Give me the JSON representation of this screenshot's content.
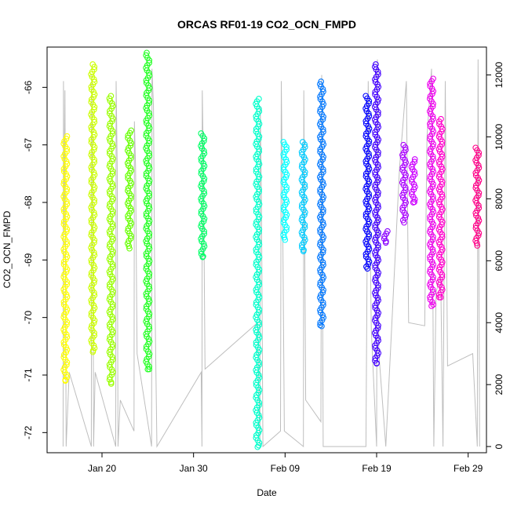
{
  "chart_data": {
    "type": "scatter",
    "title": "ORCAS RF01-19 CO2_OCN_FMPD",
    "xlabel": "Date",
    "ylabel": "CO2_OCN_FMPD",
    "xlim": [
      "2016-01-14",
      "2016-03-02"
    ],
    "ylim": [
      -72.35,
      -65.3
    ],
    "y2lim": [
      -200,
      12900
    ],
    "grid": false,
    "legend": "none",
    "x_ticks": [
      {
        "date": "2016-01-20",
        "label": "Jan 20"
      },
      {
        "date": "2016-01-30",
        "label": "Jan 30"
      },
      {
        "date": "2016-02-09",
        "label": "Feb 09"
      },
      {
        "date": "2016-02-19",
        "label": "Feb 19"
      },
      {
        "date": "2016-02-29",
        "label": "Feb 29"
      }
    ],
    "y_ticks": [
      -66,
      -67,
      -68,
      -69,
      -70,
      -71,
      -72
    ],
    "y2_ticks": [
      0,
      2000,
      4000,
      6000,
      8000,
      10000,
      12000
    ],
    "flights": [
      {
        "x": "2016-01-16",
        "ymin": -71.1,
        "ymax": -66.85,
        "color": "#FFFF00"
      },
      {
        "x": "2016-01-19",
        "ymin": -70.6,
        "ymax": -65.6,
        "color": "#CCFF00"
      },
      {
        "x": "2016-01-21",
        "ymin": -71.15,
        "ymax": -66.15,
        "color": "#99FF00"
      },
      {
        "x": "2016-01-23",
        "ymin": -68.8,
        "ymax": -66.75,
        "color": "#66FF00"
      },
      {
        "x": "2016-01-25",
        "ymin": -70.9,
        "ymax": -65.4,
        "color": "#22FF22"
      },
      {
        "x": "2016-01-31",
        "ymin": -68.95,
        "ymax": -66.8,
        "color": "#00FF66"
      },
      {
        "x": "2016-02-06",
        "ymin": -72.25,
        "ymax": -66.2,
        "color": "#00FFCC"
      },
      {
        "x": "2016-02-09",
        "ymin": -68.65,
        "ymax": -66.95,
        "color": "#00FFFF"
      },
      {
        "x": "2016-02-11",
        "ymin": -68.85,
        "ymax": -66.95,
        "color": "#00CCFF"
      },
      {
        "x": "2016-02-13",
        "ymin": -70.15,
        "ymax": -65.9,
        "color": "#0077FF"
      },
      {
        "x": "2016-02-18",
        "ymin": -69.15,
        "ymax": -66.15,
        "color": "#0000FF"
      },
      {
        "x": "2016-02-19",
        "ymin": -70.8,
        "ymax": -65.6,
        "color": "#4400FF"
      },
      {
        "x": "2016-02-20",
        "ymin": -68.7,
        "ymax": -68.5,
        "color": "#8800FF"
      },
      {
        "x": "2016-02-22",
        "ymin": -68.35,
        "ymax": -67.0,
        "color": "#AA00FF"
      },
      {
        "x": "2016-02-23",
        "ymin": -68.0,
        "ymax": -67.25,
        "color": "#CC00FF"
      },
      {
        "x": "2016-02-25",
        "ymin": -69.8,
        "ymax": -65.85,
        "color": "#EE00EE"
      },
      {
        "x": "2016-02-26",
        "ymin": -69.65,
        "ymax": -66.55,
        "color": "#FF00CC"
      },
      {
        "x": "2016-03-01",
        "ymin": -68.75,
        "ymax": -67.05,
        "color": "#FF0088"
      }
    ],
    "altitude_series": {
      "name": "",
      "color": "#BEBEBE",
      "points": [
        [
          "2016-01-15T18:00",
          0
        ],
        [
          "2016-01-15T19:00",
          11800
        ],
        [
          "2016-01-15T21:00",
          7000
        ],
        [
          "2016-01-15T23:00",
          11500
        ],
        [
          "2016-01-16T02:00",
          0
        ],
        [
          "2016-01-16T10:00",
          2400
        ],
        [
          "2016-01-18T20:00",
          0
        ],
        [
          "2016-01-18T21:00",
          12000
        ],
        [
          "2016-01-19T00:00",
          8000
        ],
        [
          "2016-01-19T02:00",
          0
        ],
        [
          "2016-01-19T06:00",
          2400
        ],
        [
          "2016-01-21T12:00",
          0
        ],
        [
          "2016-01-21T13:00",
          11800
        ],
        [
          "2016-01-21T16:00",
          9000
        ],
        [
          "2016-01-21T18:00",
          0
        ],
        [
          "2016-01-22T00:00",
          1500
        ],
        [
          "2016-01-23T12:00",
          500
        ],
        [
          "2016-01-23T13:00",
          10500
        ],
        [
          "2016-01-23T16:00",
          9000
        ],
        [
          "2016-01-23T20:00",
          3000
        ],
        [
          "2016-01-25T10:00",
          0
        ],
        [
          "2016-01-25T11:00",
          12200
        ],
        [
          "2016-01-25T15:00",
          11000
        ],
        [
          "2016-01-25T18:00",
          5500
        ],
        [
          "2016-01-26T00:00",
          0
        ],
        [
          "2016-01-30T20:00",
          2400
        ],
        [
          "2016-01-30T22:00",
          0
        ],
        [
          "2016-01-30T23:00",
          11500
        ],
        [
          "2016-01-31T02:00",
          9000
        ],
        [
          "2016-01-31T06:00",
          2500
        ],
        [
          "2016-02-06T00:00",
          4000
        ],
        [
          "2016-02-06T06:00",
          0
        ],
        [
          "2016-02-06T07:00",
          11000
        ],
        [
          "2016-02-06T10:00",
          8000
        ],
        [
          "2016-02-06T14:00",
          0
        ],
        [
          "2016-02-08T12:00",
          500
        ],
        [
          "2016-02-08T14:00",
          11800
        ],
        [
          "2016-02-08T18:00",
          7000
        ],
        [
          "2016-02-08T22:00",
          500
        ],
        [
          "2016-02-11T00:00",
          0
        ],
        [
          "2016-02-11T01:00",
          11500
        ],
        [
          "2016-02-11T06:00",
          1500
        ],
        [
          "2016-02-12T22:00",
          800
        ],
        [
          "2016-02-13T00:00",
          12000
        ],
        [
          "2016-02-13T04:00",
          0
        ],
        [
          "2016-02-17T20:00",
          0
        ],
        [
          "2016-02-18T02:00",
          11800
        ],
        [
          "2016-02-18T10:00",
          3800
        ],
        [
          "2016-02-19T00:00",
          0
        ],
        [
          "2016-02-19T02:00",
          12500
        ],
        [
          "2016-02-19T06:00",
          3000
        ],
        [
          "2016-02-20T00:00",
          0
        ],
        [
          "2016-02-21T12:00",
          9000
        ],
        [
          "2016-02-22T06:00",
          11800
        ],
        [
          "2016-02-22T12:00",
          4000
        ],
        [
          "2016-02-24T06:00",
          3900
        ],
        [
          "2016-02-24T12:00",
          10000
        ],
        [
          "2016-02-25T00:00",
          12200
        ],
        [
          "2016-02-25T06:00",
          0
        ],
        [
          "2016-02-25T12:00",
          5000
        ],
        [
          "2016-02-26T00:00",
          5500
        ],
        [
          "2016-02-26T06:00",
          0
        ],
        [
          "2016-02-26T12:00",
          11800
        ],
        [
          "2016-02-26T18:00",
          2600
        ],
        [
          "2016-02-29T12:00",
          3000
        ],
        [
          "2016-03-01T00:00",
          0
        ],
        [
          "2016-03-01T02:00",
          12500
        ],
        [
          "2016-03-01T06:00",
          0
        ]
      ]
    }
  }
}
